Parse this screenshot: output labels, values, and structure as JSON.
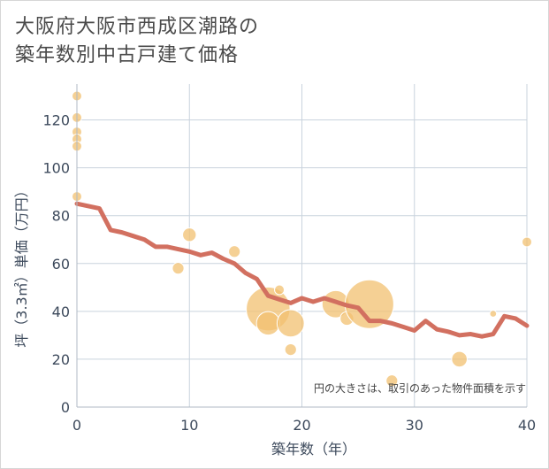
{
  "chart_data": {
    "type": "scatter",
    "title_lines": [
      "大阪府大阪市西成区潮路の",
      "築年数別中古戸建て価格"
    ],
    "xlabel": "築年数（年）",
    "ylabel": "坪（3.3㎡）単価（万円）",
    "xlim": [
      0,
      40
    ],
    "ylim": [
      0,
      135
    ],
    "xticks": [
      0,
      10,
      20,
      30,
      40
    ],
    "yticks": [
      0,
      20,
      40,
      60,
      80,
      100,
      120
    ],
    "xtick_labels": [
      "0",
      "10",
      "20",
      "30",
      "40"
    ],
    "ytick_labels": [
      "0",
      "20",
      "40",
      "60",
      "80",
      "100",
      "120"
    ],
    "grid": true,
    "note": "円の大きさは、取引のあった物件面積を示す",
    "colors": {
      "bubble": "#f2c070",
      "line": "#d27060",
      "grid": "#c9d3dd"
    },
    "points": [
      {
        "x": 0,
        "y": 130,
        "s": 1
      },
      {
        "x": 0,
        "y": 121,
        "s": 1
      },
      {
        "x": 0,
        "y": 115,
        "s": 1
      },
      {
        "x": 0,
        "y": 112,
        "s": 1
      },
      {
        "x": 0,
        "y": 109,
        "s": 1
      },
      {
        "x": 0,
        "y": 88,
        "s": 1
      },
      {
        "x": 9,
        "y": 58,
        "s": 1.2
      },
      {
        "x": 10,
        "y": 72,
        "s": 1.4
      },
      {
        "x": 14,
        "y": 65,
        "s": 1.2
      },
      {
        "x": 17,
        "y": 41,
        "s": 4.5
      },
      {
        "x": 17,
        "y": 35,
        "s": 2.4
      },
      {
        "x": 18,
        "y": 49,
        "s": 1
      },
      {
        "x": 19,
        "y": 35,
        "s": 2.8
      },
      {
        "x": 19,
        "y": 24,
        "s": 1.2
      },
      {
        "x": 23,
        "y": 43,
        "s": 2.8
      },
      {
        "x": 24,
        "y": 37,
        "s": 1.4
      },
      {
        "x": 26,
        "y": 43,
        "s": 5
      },
      {
        "x": 28,
        "y": 11,
        "s": 1.2
      },
      {
        "x": 34,
        "y": 20,
        "s": 1.6
      },
      {
        "x": 37,
        "y": 39,
        "s": 0.7
      },
      {
        "x": 40,
        "y": 69,
        "s": 1
      }
    ],
    "trend": {
      "name": "trend",
      "x": [
        0,
        2,
        3,
        4,
        5,
        6,
        7,
        8,
        9,
        10,
        11,
        12,
        13,
        14,
        15,
        16,
        17,
        18,
        19,
        20,
        21,
        22,
        23,
        24,
        25,
        26,
        27,
        28,
        29,
        30,
        31,
        32,
        33,
        34,
        35,
        36,
        37,
        38,
        39,
        40
      ],
      "y": [
        85,
        83,
        74,
        73,
        71.5,
        70,
        67,
        67,
        66,
        65,
        63.5,
        64.5,
        62,
        60,
        56,
        53.5,
        46.5,
        45,
        43.5,
        45.5,
        44,
        45.5,
        44,
        42.5,
        41.5,
        36,
        36,
        35,
        33.5,
        32,
        36,
        32.5,
        31.5,
        30,
        30.5,
        29.5,
        30.5,
        38,
        37,
        34
      ]
    }
  }
}
